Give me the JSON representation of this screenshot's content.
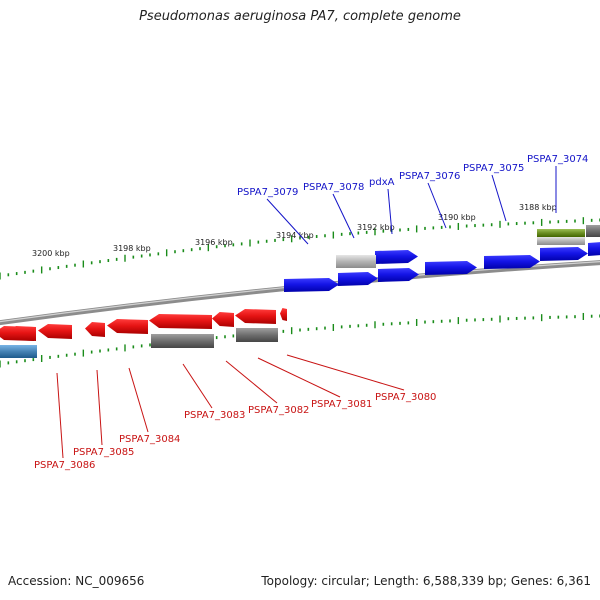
{
  "title": "Pseudomonas aeruginosa PA7, complete genome",
  "footer": {
    "accession": "Accession: NC_009656",
    "summary": "Topology: circular; Length: 6,588,339 bp; Genes: 6,361"
  },
  "colors": {
    "forward_gene": "#1414e6",
    "reverse_gene": "#e61414",
    "backbone": "#8c8c8c",
    "tick": "#1a8c1a",
    "leader_fwd": "#1414c8",
    "leader_rev": "#c81414",
    "gray_feature": "#6e6e6e",
    "light_gray_feature": "#b4b4b4",
    "olive_feature": "#6b8e23",
    "steelblue_feature": "#4682b4"
  },
  "ruler_labels": [
    "3200 kbp",
    "3198 kbp",
    "3196 kbp",
    "3194 kbp",
    "3192 kbp",
    "3190 kbp",
    "3188 kbp"
  ],
  "forward_gene_labels": [
    "PSPA7_3079",
    "PSPA7_3078",
    "pdxA",
    "PSPA7_3076",
    "PSPA7_3075",
    "PSPA7_3074"
  ],
  "reverse_gene_labels": [
    "PSPA7_3080",
    "PSPA7_3081",
    "PSPA7_3082",
    "PSPA7_3083",
    "PSPA7_3084",
    "PSPA7_3085",
    "PSPA7_3086"
  ]
}
